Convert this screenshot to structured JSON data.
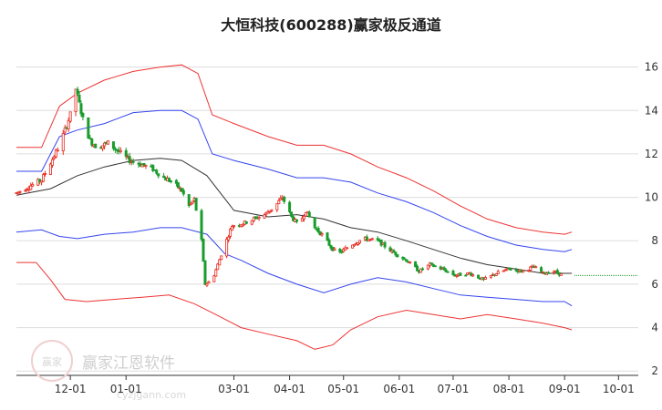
{
  "chart_data": {
    "type": "candlestick",
    "title": "大恒科技(600288)赢家极反通道",
    "y_ticks": [
      "16",
      "14",
      "12",
      "10",
      "8",
      "6",
      "4",
      "2"
    ],
    "y_tick_values": [
      16,
      14,
      12,
      10,
      8,
      6,
      4,
      2
    ],
    "ylim": [
      1.8,
      17.2
    ],
    "x_ticks": [
      "12-01",
      "01-01",
      "03-01",
      "04-01",
      "05-01",
      "06-01",
      "07-01",
      "08-01",
      "09-01",
      "10-01"
    ],
    "x_tick_dates": [
      "2023-12-01",
      "2024-01-01",
      "2024-03-01",
      "2024-04-01",
      "2024-05-01",
      "2024-06-01",
      "2024-07-01",
      "2024-08-01",
      "2024-09-01",
      "2024-10-01"
    ],
    "x_range": [
      "2023-11-01",
      "2024-10-12"
    ],
    "last_price_reference": 6.4,
    "grid": "horizontal",
    "colors": {
      "up": "#e8281e",
      "down": "#1a9c2d",
      "outer_band": "#ee3333",
      "inner_band": "#3344ee",
      "middle_line": "#333333",
      "reference_line": "#1a9c2d",
      "grid": "#dddddd"
    },
    "series": [
      {
        "role": "outer-upper",
        "color": "#ee3333",
        "points": [
          [
            "2023-11-01",
            12.3
          ],
          [
            "2023-11-15",
            12.3
          ],
          [
            "2023-11-25",
            14.2
          ],
          [
            "2023-12-05",
            14.8
          ],
          [
            "2023-12-20",
            15.4
          ],
          [
            "2024-01-05",
            15.8
          ],
          [
            "2024-01-20",
            16.0
          ],
          [
            "2024-02-01",
            16.1
          ],
          [
            "2024-02-10",
            15.7
          ],
          [
            "2024-02-18",
            13.8
          ],
          [
            "2024-03-01",
            13.4
          ],
          [
            "2024-03-20",
            12.8
          ],
          [
            "2024-04-05",
            12.4
          ],
          [
            "2024-04-20",
            12.4
          ],
          [
            "2024-05-05",
            12.0
          ],
          [
            "2024-05-20",
            11.4
          ],
          [
            "2024-06-05",
            10.9
          ],
          [
            "2024-06-20",
            10.3
          ],
          [
            "2024-07-05",
            9.6
          ],
          [
            "2024-07-20",
            9.0
          ],
          [
            "2024-08-05",
            8.6
          ],
          [
            "2024-08-20",
            8.4
          ],
          [
            "2024-09-01",
            8.3
          ],
          [
            "2024-09-05",
            8.4
          ]
        ]
      },
      {
        "role": "inner-upper",
        "color": "#3344ee",
        "points": [
          [
            "2023-11-01",
            11.2
          ],
          [
            "2023-11-15",
            11.2
          ],
          [
            "2023-11-25",
            12.8
          ],
          [
            "2023-12-05",
            13.1
          ],
          [
            "2023-12-20",
            13.4
          ],
          [
            "2024-01-05",
            13.9
          ],
          [
            "2024-01-20",
            14.0
          ],
          [
            "2024-02-01",
            14.0
          ],
          [
            "2024-02-10",
            13.6
          ],
          [
            "2024-02-18",
            12.0
          ],
          [
            "2024-03-01",
            11.7
          ],
          [
            "2024-03-20",
            11.3
          ],
          [
            "2024-04-05",
            10.9
          ],
          [
            "2024-04-20",
            10.9
          ],
          [
            "2024-05-05",
            10.7
          ],
          [
            "2024-05-20",
            10.2
          ],
          [
            "2024-06-05",
            9.8
          ],
          [
            "2024-06-20",
            9.3
          ],
          [
            "2024-07-05",
            8.7
          ],
          [
            "2024-07-20",
            8.2
          ],
          [
            "2024-08-05",
            7.8
          ],
          [
            "2024-08-20",
            7.6
          ],
          [
            "2024-09-01",
            7.5
          ],
          [
            "2024-09-05",
            7.6
          ]
        ]
      },
      {
        "role": "middle",
        "color": "#333333",
        "points": [
          [
            "2023-11-01",
            10.1
          ],
          [
            "2023-11-20",
            10.4
          ],
          [
            "2023-12-05",
            11.0
          ],
          [
            "2023-12-20",
            11.4
          ],
          [
            "2024-01-05",
            11.7
          ],
          [
            "2024-01-20",
            11.8
          ],
          [
            "2024-02-01",
            11.7
          ],
          [
            "2024-02-15",
            11.0
          ],
          [
            "2024-03-01",
            9.4
          ],
          [
            "2024-03-20",
            9.1
          ],
          [
            "2024-04-05",
            9.2
          ],
          [
            "2024-04-20",
            9.0
          ],
          [
            "2024-05-05",
            8.6
          ],
          [
            "2024-05-20",
            8.4
          ],
          [
            "2024-06-05",
            8.0
          ],
          [
            "2024-06-20",
            7.6
          ],
          [
            "2024-07-05",
            7.2
          ],
          [
            "2024-07-20",
            6.9
          ],
          [
            "2024-08-05",
            6.7
          ],
          [
            "2024-08-20",
            6.5
          ],
          [
            "2024-09-01",
            6.5
          ],
          [
            "2024-09-05",
            6.5
          ]
        ]
      },
      {
        "role": "inner-lower",
        "color": "#3344ee",
        "points": [
          [
            "2023-11-01",
            8.4
          ],
          [
            "2023-11-15",
            8.5
          ],
          [
            "2023-11-25",
            8.2
          ],
          [
            "2023-12-05",
            8.1
          ],
          [
            "2023-12-20",
            8.3
          ],
          [
            "2024-01-05",
            8.4
          ],
          [
            "2024-01-20",
            8.6
          ],
          [
            "2024-02-01",
            8.6
          ],
          [
            "2024-02-15",
            8.3
          ],
          [
            "2024-02-25",
            7.4
          ],
          [
            "2024-03-05",
            7.1
          ],
          [
            "2024-03-20",
            6.5
          ],
          [
            "2024-04-05",
            6.0
          ],
          [
            "2024-04-20",
            5.6
          ],
          [
            "2024-05-05",
            6.0
          ],
          [
            "2024-05-20",
            6.3
          ],
          [
            "2024-06-05",
            6.1
          ],
          [
            "2024-06-20",
            5.8
          ],
          [
            "2024-07-05",
            5.5
          ],
          [
            "2024-07-20",
            5.4
          ],
          [
            "2024-08-05",
            5.3
          ],
          [
            "2024-08-20",
            5.2
          ],
          [
            "2024-09-01",
            5.2
          ],
          [
            "2024-09-05",
            5.0
          ]
        ]
      },
      {
        "role": "outer-lower",
        "color": "#ee3333",
        "points": [
          [
            "2023-11-01",
            7.0
          ],
          [
            "2023-11-12",
            7.0
          ],
          [
            "2023-11-20",
            6.2
          ],
          [
            "2023-11-28",
            5.3
          ],
          [
            "2023-12-10",
            5.2
          ],
          [
            "2023-12-25",
            5.3
          ],
          [
            "2024-01-10",
            5.4
          ],
          [
            "2024-01-25",
            5.5
          ],
          [
            "2024-02-08",
            5.1
          ],
          [
            "2024-02-20",
            4.6
          ],
          [
            "2024-03-05",
            4.0
          ],
          [
            "2024-03-20",
            3.7
          ],
          [
            "2024-04-05",
            3.4
          ],
          [
            "2024-04-15",
            3.0
          ],
          [
            "2024-04-25",
            3.2
          ],
          [
            "2024-05-05",
            3.9
          ],
          [
            "2024-05-20",
            4.5
          ],
          [
            "2024-06-05",
            4.8
          ],
          [
            "2024-06-20",
            4.6
          ],
          [
            "2024-07-05",
            4.4
          ],
          [
            "2024-07-20",
            4.6
          ],
          [
            "2024-08-05",
            4.4
          ],
          [
            "2024-08-20",
            4.2
          ],
          [
            "2024-09-01",
            4.0
          ],
          [
            "2024-09-05",
            3.9
          ]
        ]
      },
      {
        "role": "close-path",
        "points": [
          [
            "2023-11-01",
            10.2
          ],
          [
            "2023-11-08",
            10.5
          ],
          [
            "2023-11-15",
            10.8
          ],
          [
            "2023-11-20",
            11.6
          ],
          [
            "2023-11-25",
            12.4
          ],
          [
            "2023-12-01",
            13.8
          ],
          [
            "2023-12-04",
            15.0
          ],
          [
            "2023-12-08",
            13.6
          ],
          [
            "2023-12-12",
            12.6
          ],
          [
            "2023-12-16",
            12.3
          ],
          [
            "2023-12-22",
            12.5
          ],
          [
            "2023-12-28",
            12.1
          ],
          [
            "2024-01-03",
            11.7
          ],
          [
            "2024-01-10",
            11.5
          ],
          [
            "2024-01-16",
            11.3
          ],
          [
            "2024-01-22",
            10.9
          ],
          [
            "2024-01-27",
            10.7
          ],
          [
            "2024-02-01",
            10.3
          ],
          [
            "2024-02-05",
            9.6
          ],
          [
            "2024-02-08",
            9.9
          ],
          [
            "2024-02-12",
            8.0
          ],
          [
            "2024-02-14",
            6.0
          ],
          [
            "2024-02-18",
            6.2
          ],
          [
            "2024-02-24",
            7.6
          ],
          [
            "2024-02-29",
            8.7
          ],
          [
            "2024-03-06",
            8.8
          ],
          [
            "2024-03-12",
            9.0
          ],
          [
            "2024-03-18",
            9.2
          ],
          [
            "2024-03-24",
            9.6
          ],
          [
            "2024-03-28",
            10.0
          ],
          [
            "2024-04-02",
            9.1
          ],
          [
            "2024-04-06",
            8.7
          ],
          [
            "2024-04-10",
            9.4
          ],
          [
            "2024-04-15",
            8.6
          ],
          [
            "2024-04-20",
            8.2
          ],
          [
            "2024-04-24",
            7.7
          ],
          [
            "2024-04-28",
            7.4
          ],
          [
            "2024-05-05",
            7.8
          ],
          [
            "2024-05-12",
            8.1
          ],
          [
            "2024-05-20",
            8.0
          ],
          [
            "2024-05-28",
            7.5
          ],
          [
            "2024-06-05",
            7.1
          ],
          [
            "2024-06-12",
            6.6
          ],
          [
            "2024-06-18",
            6.9
          ],
          [
            "2024-06-25",
            6.7
          ],
          [
            "2024-07-02",
            6.4
          ],
          [
            "2024-07-10",
            6.5
          ],
          [
            "2024-07-18",
            6.2
          ],
          [
            "2024-07-25",
            6.5
          ],
          [
            "2024-08-01",
            6.7
          ],
          [
            "2024-08-08",
            6.6
          ],
          [
            "2024-08-15",
            6.8
          ],
          [
            "2024-08-20",
            6.5
          ],
          [
            "2024-08-26",
            6.6
          ],
          [
            "2024-08-31",
            6.4
          ]
        ]
      }
    ]
  },
  "watermark": {
    "brand": "赢家江恩软件",
    "site": "cyzjgann.com",
    "seal": "赢家"
  }
}
